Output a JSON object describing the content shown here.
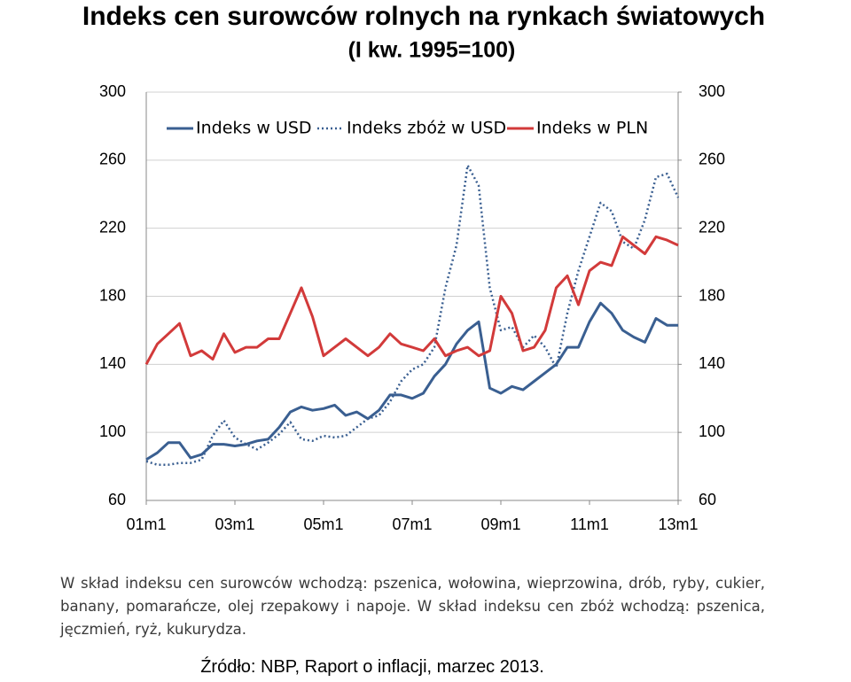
{
  "chart_data": {
    "type": "line",
    "title": "Indeks cen surowców rolnych na rynkach światowych",
    "subtitle": "(I kw. 1995=100)",
    "categories": [
      "01m1",
      null,
      null,
      null,
      null,
      null,
      null,
      null,
      "03m1",
      null,
      null,
      null,
      null,
      null,
      null,
      null,
      "05m1",
      null,
      null,
      null,
      null,
      null,
      null,
      null,
      "07m1",
      null,
      null,
      null,
      null,
      null,
      null,
      null,
      "09m1",
      null,
      null,
      null,
      null,
      null,
      null,
      null,
      "11m1",
      null,
      null,
      null,
      null,
      null,
      null,
      null,
      "13m1"
    ],
    "series": [
      {
        "name": "Indeks w USD",
        "color": "#3a5f91",
        "line_style": "solid",
        "values": [
          84,
          88,
          94,
          94,
          85,
          87,
          93,
          93,
          92,
          93,
          95,
          96,
          103,
          112,
          115,
          113,
          114,
          116,
          110,
          112,
          108,
          113,
          122,
          122,
          120,
          123,
          133,
          140,
          152,
          160,
          165,
          126,
          123,
          127,
          125,
          130,
          135,
          140,
          150,
          150,
          165,
          176,
          170,
          160,
          156,
          153,
          167,
          163,
          163
        ]
      },
      {
        "name": "Indeks zbóż w USD",
        "color": "#3a5f91",
        "line_style": "dotted",
        "values": [
          83,
          81,
          81,
          82,
          82,
          84,
          98,
          107,
          97,
          93,
          90,
          94,
          99,
          106,
          96,
          95,
          98,
          97,
          98,
          103,
          108,
          110,
          118,
          130,
          137,
          140,
          150,
          185,
          210,
          257,
          245,
          185,
          160,
          162,
          150,
          157,
          150,
          138,
          170,
          195,
          215,
          235,
          230,
          212,
          208,
          225,
          250,
          252,
          238
        ]
      },
      {
        "name": "Indeks w PLN",
        "color": "#d23a3a",
        "line_style": "solid",
        "values": [
          140,
          152,
          158,
          164,
          145,
          148,
          143,
          158,
          147,
          150,
          150,
          155,
          155,
          170,
          185,
          168,
          145,
          150,
          155,
          150,
          145,
          150,
          158,
          152,
          150,
          148,
          155,
          145,
          148,
          150,
          145,
          148,
          180,
          170,
          148,
          150,
          160,
          185,
          192,
          175,
          195,
          200,
          198,
          215,
          210,
          205,
          215,
          213,
          210
        ]
      }
    ],
    "ylim": [
      60,
      300
    ],
    "yticks": [
      60,
      100,
      140,
      180,
      220,
      260,
      300
    ],
    "y2lim": [
      60,
      300
    ],
    "y2ticks": [
      60,
      100,
      140,
      180,
      220,
      260,
      300
    ],
    "grid": true,
    "legend": "top",
    "note": "W skład indeksu cen surowców wchodzą: pszenica, wołowina, wieprzowina, drób, ryby, cukier, banany, pomarańcze, olej rzepakowy i napoje. W skład indeksu cen zbóż wchodzą: pszenica, jęczmień, ryż, kukurydza.",
    "source": "Źródło: NBP, Raport o inflacji, marzec 2013."
  }
}
